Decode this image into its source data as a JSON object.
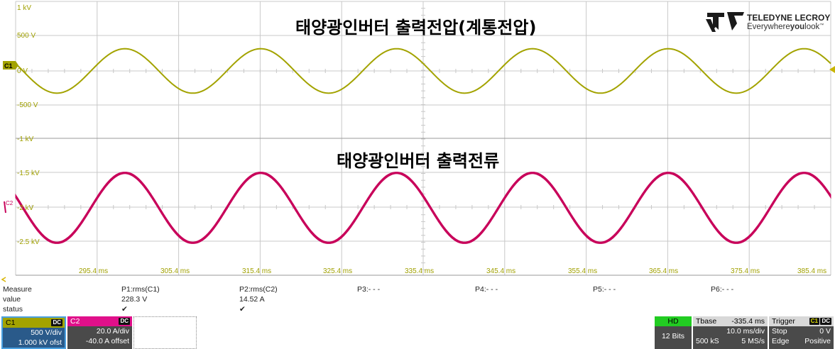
{
  "titles": {
    "top": "태양광인버터 출력전압(계통전압)",
    "bottom": "태양광인버터 출력전류"
  },
  "logo": {
    "brand": "TELEDYNE LECROY",
    "tagline_prefix": "Everywhere",
    "tagline_bold": "you",
    "tagline_suffix": "look",
    "tagline_tm": "™"
  },
  "channel_markers": {
    "c1": "C1",
    "c2": "C2"
  },
  "upper_grid_labels": [
    "1 kV",
    "500 V",
    "0 V",
    "-500 V",
    "-1 kV"
  ],
  "lower_grid_labels": [
    "-1.5 kV",
    "-2 kV",
    "-2.5 kV"
  ],
  "time_labels": [
    "295.4 ms",
    "305.4 ms",
    "315.4 ms",
    "325.4 ms",
    "335.4 ms",
    "345.4 ms",
    "355.4 ms",
    "365.4 ms",
    "375.4 ms",
    "385.4 ms"
  ],
  "colors": {
    "c1": "#a3a300",
    "c2": "#c8005a",
    "grid": "#c8c8c8",
    "hd": "#22cc22"
  },
  "measure": {
    "headers": [
      "Measure",
      "P1:rms(C1)",
      "P2:rms(C2)",
      "P3:- - -",
      "P4:- - -",
      "P5:- - -",
      "P6:- - -"
    ],
    "value_label": "value",
    "values": [
      "228.3 V",
      "14.52 A"
    ],
    "status_label": "status",
    "status_marks": [
      "✔",
      "✔"
    ]
  },
  "channels": [
    {
      "name": "C1",
      "coupling": "DC",
      "vdiv": "500 V/div",
      "offset": "1.000 kV ofst"
    },
    {
      "name": "C2",
      "coupling": "DC",
      "vdiv": "20.0 A/div",
      "offset": "-40.0 A offset"
    }
  ],
  "hd": {
    "label": "HD",
    "bits": "12 Bits"
  },
  "timebase": {
    "label": "Tbase",
    "delay": "-335.4 ms",
    "tdiv": "10.0 ms/div",
    "samples": "500 kS",
    "rate": "5 MS/s"
  },
  "trigger": {
    "label": "Trigger",
    "badge_c1": "C1",
    "badge_dc": "DC",
    "mode": "Stop",
    "level": "0 V",
    "type": "Edge",
    "slope": "Positive"
  },
  "chart_data": {
    "type": "line",
    "x_unit": "ms",
    "x_range": [
      290.4,
      390.4
    ],
    "series": [
      {
        "name": "C1",
        "quantity": "voltage",
        "unit": "V",
        "rms": 228.3,
        "frequency_hz": 60,
        "peak_positions": [
          [
            287.5,
            -1
          ],
          [
            303.8,
            1
          ],
          [
            320.2,
            -1
          ],
          [
            336.5,
            1
          ],
          [
            352.9,
            -1
          ],
          [
            369.3,
            1
          ],
          [
            385.6,
            -1
          ]
        ]
      },
      {
        "name": "C2",
        "quantity": "current",
        "unit": "A",
        "rms": 14.52,
        "frequency_hz": 60
      }
    ]
  }
}
